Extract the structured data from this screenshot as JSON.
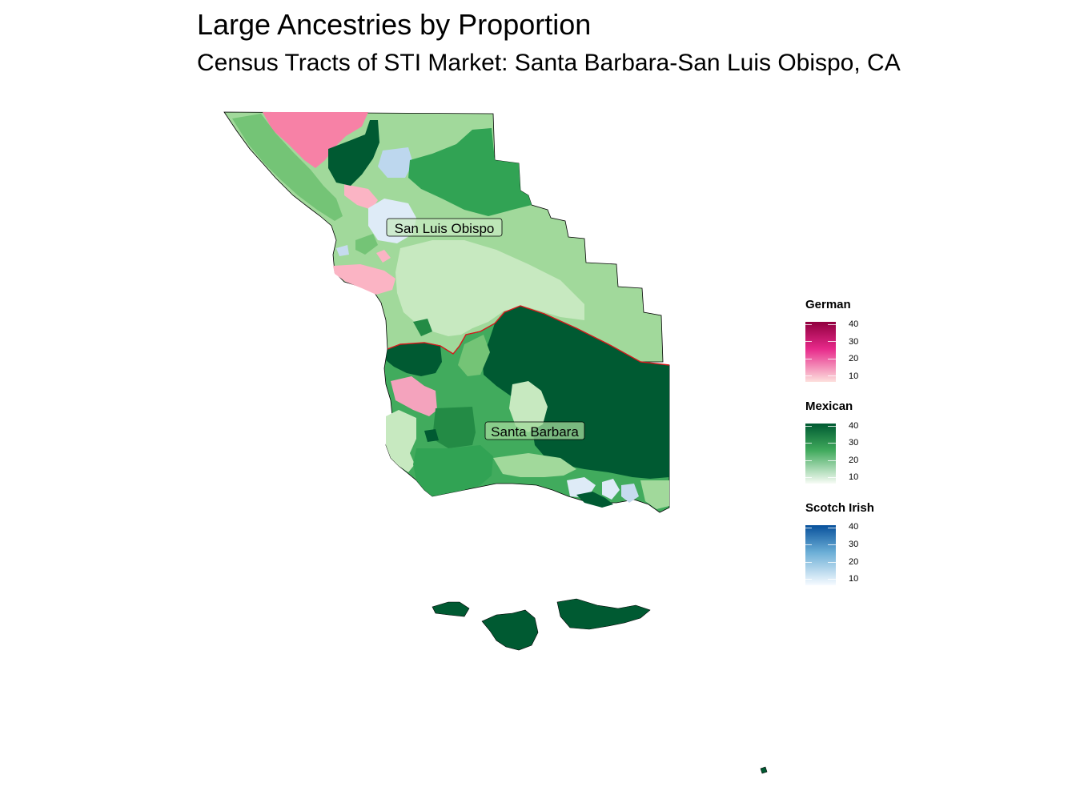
{
  "title": "Large Ancestries by Proportion",
  "subtitle": "Census Tracts of STI Market: Santa Barbara-San Luis Obispo, CA",
  "places": {
    "slo": "San Luis Obispo",
    "sb": "Santa Barbara"
  },
  "legends": [
    {
      "name": "German",
      "ticks": [
        "40",
        "30",
        "20",
        "10"
      ],
      "color_high": "#91003f",
      "color_mid": "#e7298a",
      "color_low": "#fde0dd"
    },
    {
      "name": "Mexican",
      "ticks": [
        "40",
        "30",
        "20",
        "10"
      ],
      "color_high": "#005a32",
      "color_mid": "#41ab5d",
      "color_low": "#f7fcf5"
    },
    {
      "name": "Scotch Irish",
      "ticks": [
        "40",
        "30",
        "20",
        "10"
      ],
      "color_high": "#08519c",
      "color_mid": "#6baed6",
      "color_low": "#f7fbff"
    }
  ]
}
